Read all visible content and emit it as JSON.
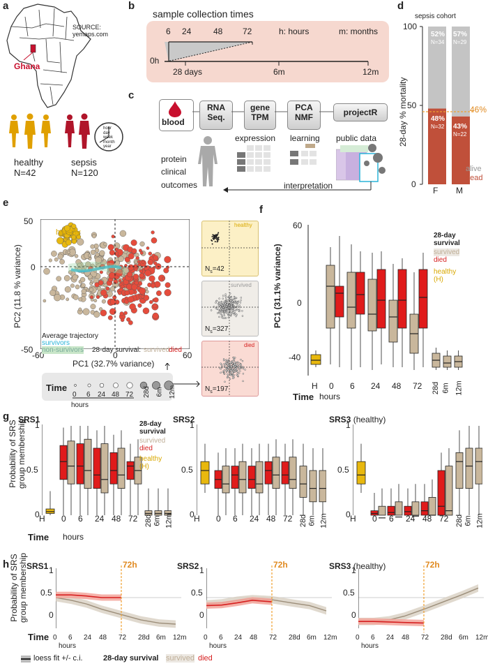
{
  "colors": {
    "healthy": "#e8b80e",
    "survived": "#c9b79c",
    "died": "#e01b1b",
    "survivors": "#2ab4d8",
    "nonsurvivors": "#c9e6c9",
    "dead_bar": "#c0503a",
    "alive_bar": "#c4c4c4"
  },
  "a": {
    "label": "a",
    "source": "SOURCE:\nyemaps.com",
    "ghana": "Ghana",
    "healthy": "healthy",
    "healthy_n": "N=42",
    "sepsis": "sepsis",
    "sepsis_n": "N=120",
    "clock": [
      "hour",
      "day",
      "week",
      "month",
      "year"
    ]
  },
  "b": {
    "label": "b",
    "title": "sample collection times",
    "ticks": [
      "6",
      "24",
      "48",
      "72"
    ],
    "h_note": "h: hours",
    "m_note": "m: months",
    "zero": "0h",
    "lower_ticks": [
      "28 days",
      "6m",
      "12m"
    ]
  },
  "c": {
    "label": "c",
    "blood": "blood",
    "steps": [
      "RNA\nSeq.",
      "gene\nTPM",
      "PCA\nNMF",
      "projectR"
    ],
    "expression": "expression",
    "learning": "learning",
    "public": "public data",
    "side": [
      "protein",
      "clinical",
      "outcomes"
    ],
    "interpretation": "interpretation"
  },
  "d": {
    "label": "d",
    "title": "sepsis cohort",
    "ylabel": "28-day % mortality",
    "yticks": [
      "100",
      "50",
      "0"
    ],
    "line_label": "46%",
    "F": {
      "alive_pct": "52%",
      "alive_n": "N=34",
      "dead_pct": "48%",
      "dead_n": "N=32",
      "label": "F"
    },
    "M": {
      "alive_pct": "57%",
      "alive_n": "N=29",
      "dead_pct": "43%",
      "dead_n": "N=22",
      "label": "M"
    },
    "alive": "alive",
    "dead": "dead"
  },
  "chart_data": [
    {
      "type": "bar",
      "panel": "d",
      "categories": [
        "F",
        "M"
      ],
      "series": [
        {
          "name": "alive",
          "values": [
            52,
            57
          ]
        },
        {
          "name": "dead",
          "values": [
            48,
            43
          ]
        }
      ],
      "ylim": [
        0,
        100
      ],
      "ylabel": "28-day % mortality",
      "annotation": "46%"
    },
    {
      "type": "scatter",
      "panel": "e",
      "xlabel": "PC1 (32.7% variance)",
      "ylabel": "PC2 (11.8 % variance)",
      "xlim": [
        -60,
        60
      ],
      "ylim": [
        -50,
        50
      ],
      "series": [
        {
          "name": "healthy"
        },
        {
          "name": "survived"
        },
        {
          "name": "died"
        }
      ]
    },
    {
      "type": "box",
      "panel": "f",
      "ylabel": "PC1 (31.1% variance)",
      "yticks": [
        60,
        0,
        -40
      ],
      "categories": [
        "H",
        "0",
        "6",
        "24",
        "48",
        "72",
        "28d",
        "6m",
        "12m"
      ]
    },
    {
      "type": "box",
      "panel": "g",
      "panels": [
        "SRS1",
        "SRS2",
        "SRS3 (healthy)"
      ],
      "ylabel": "Probability of SRS group membership",
      "yticks": [
        1,
        0.5,
        0
      ]
    },
    {
      "type": "line",
      "panel": "h",
      "panels": [
        "SRS1",
        "SRS2",
        "SRS3 (healthy)"
      ],
      "x": [
        "0",
        "6",
        "24",
        "48",
        "72",
        "28d",
        "6m",
        "12m"
      ],
      "annotation": "72h"
    }
  ],
  "e": {
    "label": "e",
    "healthy": "healthy",
    "xlabel": "PC1 (32.7% variance)",
    "ylabel": "PC2 (11.8 % variance)",
    "xticks": [
      "-60",
      "0",
      "60"
    ],
    "yticks": [
      "50",
      "0",
      "-50"
    ],
    "avg": "Average trajectory",
    "survivors": "survivors",
    "nonsurvivors": "non-survivors",
    "surv_label": "28-day survival:",
    "survived": "survived",
    "died": "died",
    "small": [
      {
        "title": "healthy",
        "n": "N",
        "sub": "s",
        "eq": "=42"
      },
      {
        "title": "survived",
        "n": "N",
        "sub": "s",
        "eq": "=327"
      },
      {
        "title": "died",
        "n": "N",
        "sub": "s",
        "eq": "=197"
      }
    ],
    "time": "Time",
    "times": [
      "0",
      "6",
      "24",
      "48",
      "72",
      "28d",
      "6m",
      "12m"
    ],
    "hours": "hours"
  },
  "f": {
    "label": "f",
    "ylabel": "PC1 (31.1% variance)",
    "yticks": [
      "60",
      "0",
      "-40"
    ],
    "legend_title": "28-day\nsurvival",
    "survived": "survived",
    "died": "died",
    "healthy": "healthy\n(H)",
    "H": "H",
    "times": [
      "0",
      "6",
      "24",
      "48",
      "72"
    ],
    "late": [
      "28d",
      "6m",
      "12m"
    ],
    "time": "Time",
    "hours": "hours"
  },
  "g": {
    "label": "g",
    "panels": [
      "SRS1",
      "SRS2",
      "SRS3"
    ],
    "srs3_extra": "(healthy)",
    "ylabel": "Probability of SRS\ngroup membership",
    "yticks": [
      "1",
      "0.5",
      "0"
    ],
    "legend_title": "28-day\nsurvival",
    "survived": "survived",
    "died": "died",
    "healthy": "healthy\n(H)",
    "H": "H",
    "times": [
      "0",
      "6",
      "24",
      "48",
      "72"
    ],
    "late": [
      "28d",
      "6m",
      "12m"
    ],
    "time": "Time",
    "hours": "hours"
  },
  "h": {
    "label": "h",
    "panels": [
      "SRS1",
      "SRS2",
      "SRS3"
    ],
    "srs3_extra": "(healthy)",
    "ylabel": "Probability of SRS\ngroup membership",
    "yticks": [
      "1",
      "0.5",
      "0"
    ],
    "marker": "72h",
    "xticks": [
      "0",
      "6",
      "24",
      "48",
      "72",
      "28d",
      "6m",
      "12m"
    ],
    "time": "Time",
    "hours": "hours",
    "legend_fit": "loess fit +/- c.i.",
    "legend_title": "28-day survival",
    "survived": "survived",
    "died": "died"
  }
}
